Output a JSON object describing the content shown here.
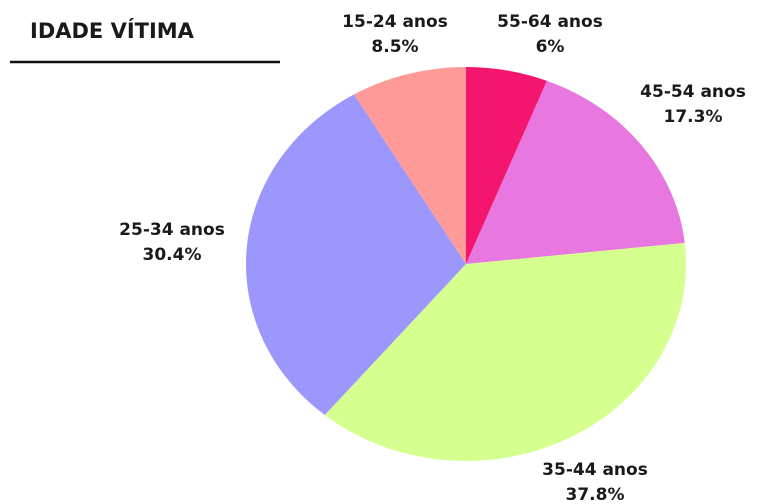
{
  "chart_data": {
    "type": "pie",
    "title": "IDADE VÍTIMA",
    "categories": [
      "55-64 anos",
      "45-54 anos",
      "35-44 anos",
      "25-34 anos",
      "15-24 anos"
    ],
    "values": [
      6,
      17.3,
      37.8,
      30.4,
      8.5
    ],
    "value_labels": [
      "6%",
      "17.3%",
      "37.8%",
      "30.4%",
      "8.5%"
    ],
    "colors": [
      "#f4166e",
      "#e877e0",
      "#d5ff8f",
      "#9b97fd",
      "#fe9a98"
    ]
  }
}
